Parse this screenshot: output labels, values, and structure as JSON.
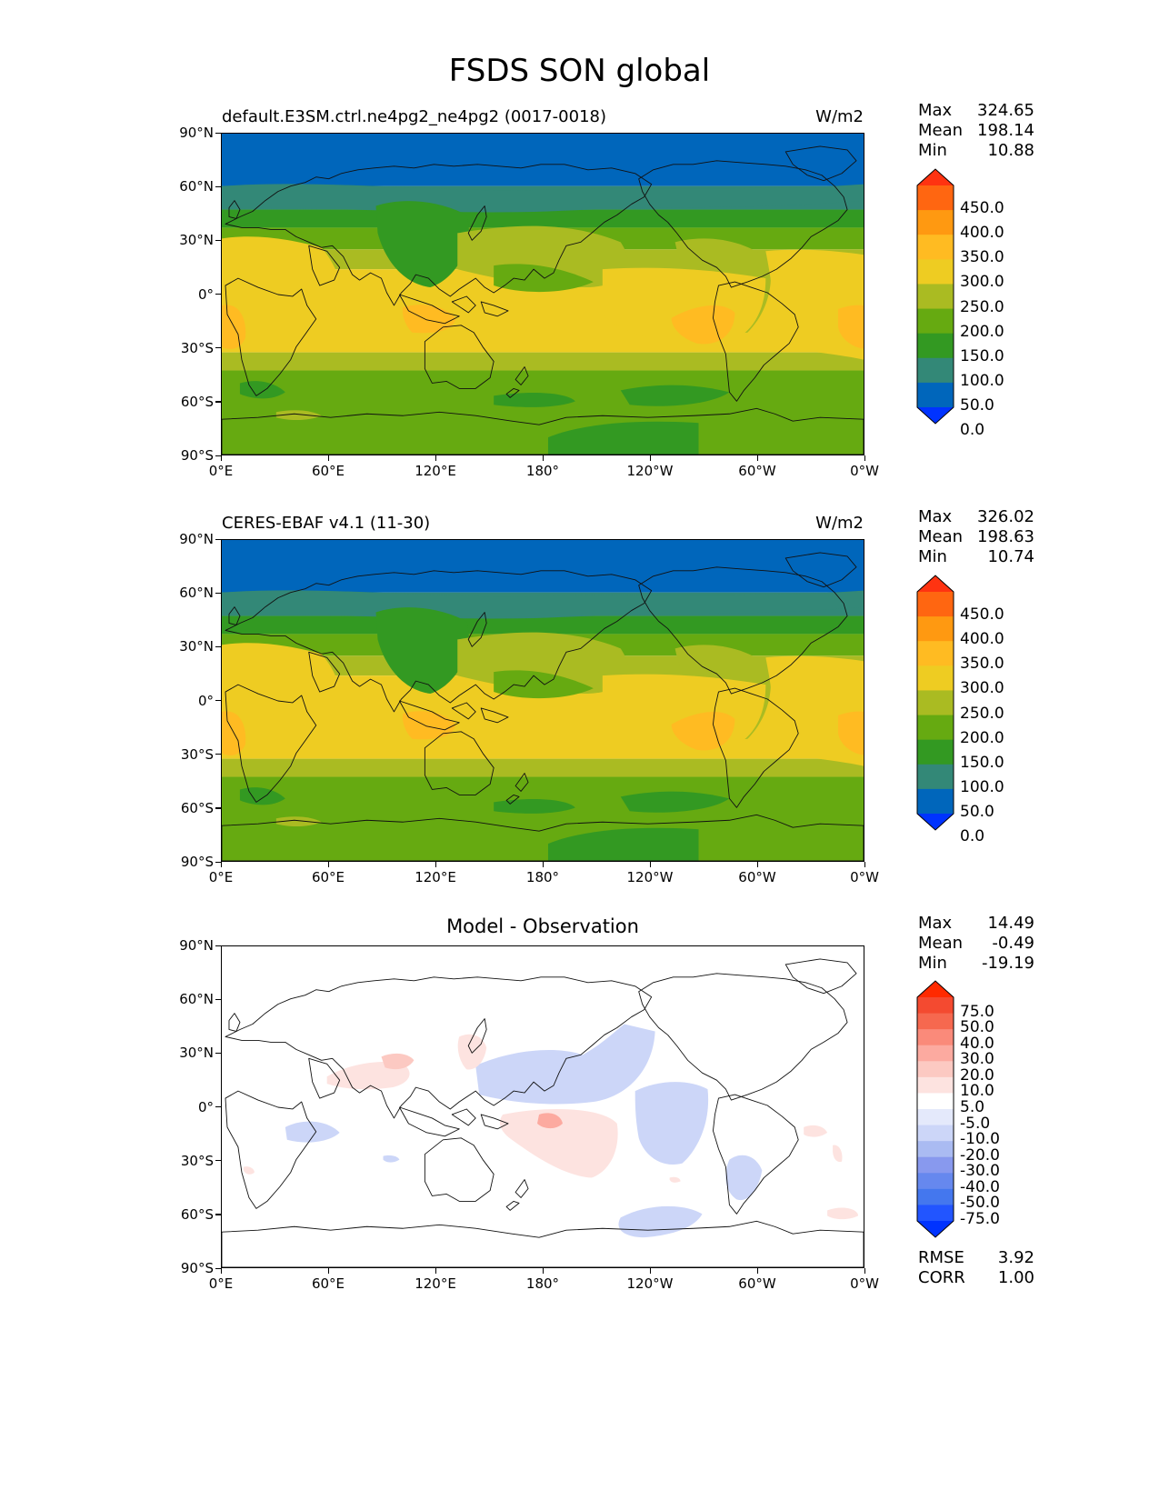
{
  "figure": {
    "title": "FSDS SON global"
  },
  "axes": {
    "lat_labels": [
      "90°N",
      "60°N",
      "30°N",
      "0°",
      "30°S",
      "60°S",
      "90°S"
    ],
    "lon_labels": [
      "0°E",
      "60°E",
      "120°E",
      "180°",
      "120°W",
      "60°W",
      "0°W"
    ]
  },
  "panels": [
    {
      "title": "default.E3SM.ctrl.ne4pg2_ne4pg2 (0017-0018)",
      "units": "W/m2",
      "stats": [
        {
          "label": "Max",
          "value": "324.65"
        },
        {
          "label": "Mean",
          "value": "198.14"
        },
        {
          "label": "Min",
          "value": "10.88"
        }
      ]
    },
    {
      "title": "CERES-EBAF v4.1 (11-30)",
      "units": "W/m2",
      "stats": [
        {
          "label": "Max",
          "value": "326.02"
        },
        {
          "label": "Mean",
          "value": "198.63"
        },
        {
          "label": "Min",
          "value": "10.74"
        }
      ]
    },
    {
      "title": "Model - Observation",
      "units": "",
      "stats": [
        {
          "label": "Max",
          "value": "14.49"
        },
        {
          "label": "Mean",
          "value": "-0.49"
        },
        {
          "label": "Min",
          "value": "-19.19"
        }
      ],
      "extra_stats": [
        {
          "label": "RMSE",
          "value": "3.92"
        },
        {
          "label": "CORR",
          "value": "1.00"
        }
      ]
    }
  ],
  "colorbars": {
    "field": {
      "colors": [
        "#0033ff",
        "#0066bb",
        "#338877",
        "#339922",
        "#66aa11",
        "#aabb22",
        "#eecc22",
        "#ffbb22",
        "#ff9911",
        "#ff6611",
        "#ff3311"
      ],
      "labels": [
        "450.0",
        "400.0",
        "350.0",
        "300.0",
        "250.0",
        "200.0",
        "150.0",
        "100.0",
        "50.0",
        "0.0"
      ]
    },
    "diff": {
      "colors": [
        "#0033ff",
        "#2255ff",
        "#4477ee",
        "#6688ee",
        "#8899ee",
        "#aabbf2",
        "#ccd6f8",
        "#e4e9fb",
        "#ffffff",
        "#fde3e0",
        "#fcc9c2",
        "#fcaaa0",
        "#fa8a7a",
        "#f6684f",
        "#f44a30",
        "#ff2a00"
      ],
      "labels": [
        "75.0",
        "50.0",
        "40.0",
        "30.0",
        "20.0",
        "10.0",
        "5.0",
        "-5.0",
        "-10.0",
        "-20.0",
        "-30.0",
        "-40.0",
        "-50.0",
        "-75.0"
      ]
    }
  }
}
